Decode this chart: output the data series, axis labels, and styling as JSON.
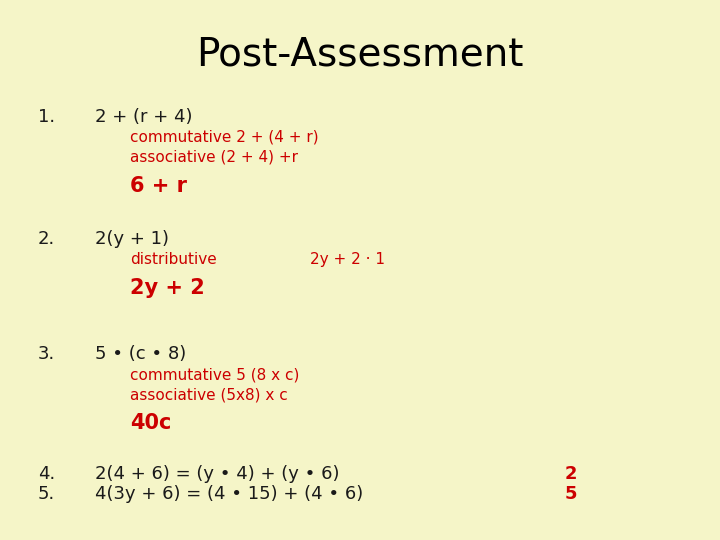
{
  "background_color": "#f5f5c8",
  "title": "Post-Assessment",
  "title_fontsize": 28,
  "title_color": "#000000",
  "black_color": "#1a1a1a",
  "red_color": "#cc0000",
  "items": [
    {
      "number": "1.",
      "question": "2 + (r + 4)",
      "steps": [
        {
          "label": "commutative",
          "expr": "2 + (4 + r)"
        },
        {
          "label": "associative",
          "expr": " (2 + 4) +r"
        }
      ],
      "answer": "6 + r"
    },
    {
      "number": "2.",
      "question": "2(y + 1)",
      "steps": [
        {
          "label": "distributive",
          "expr": "2y + 2 · 1",
          "gap": true
        }
      ],
      "answer": "2y + 2"
    },
    {
      "number": "3.",
      "question": "5 • (c • 8)",
      "steps": [
        {
          "label": "commutative",
          "expr": "5 (8 x c)"
        },
        {
          "label": "associative",
          "expr": " (5x8) x c"
        }
      ],
      "answer": "40c"
    },
    {
      "number": "4.",
      "question": "2(4 + 6) = (y • 4) + (y • 6)",
      "steps": [],
      "answer": "2",
      "inline_answer": true
    },
    {
      "number": "5.",
      "question": "4(3y + 6) = (4 • 15) + (4 • 6)",
      "steps": [],
      "answer": "5",
      "inline_answer": true
    }
  ]
}
